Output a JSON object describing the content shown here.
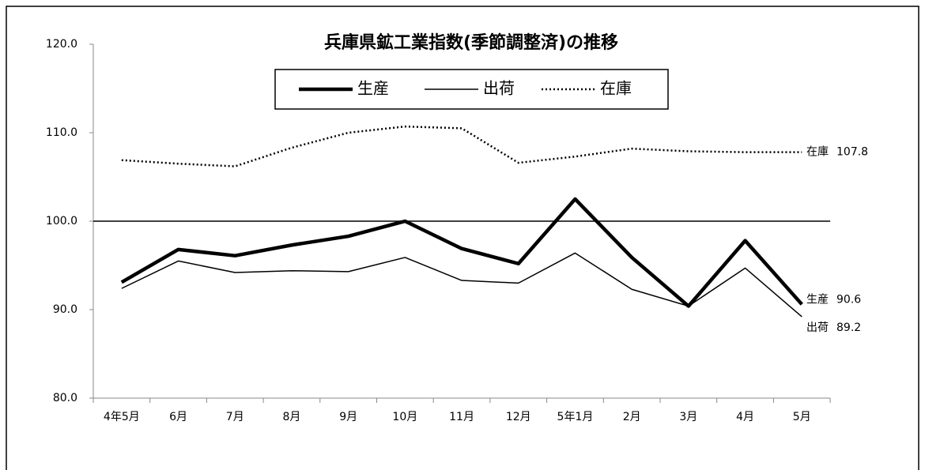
{
  "chart_data": {
    "type": "line",
    "title": "兵庫県鉱工業指数(季節調整済)の推移",
    "categories": [
      "4年5月",
      "6月",
      "7月",
      "8月",
      "9月",
      "10月",
      "11月",
      "12月",
      "5年1月",
      "2月",
      "3月",
      "4月",
      "5月"
    ],
    "series": [
      {
        "name": "生産",
        "color": "#000000",
        "style": "thick",
        "values": [
          93.1,
          96.8,
          96.1,
          97.3,
          98.3,
          100.0,
          96.9,
          95.2,
          102.5,
          95.9,
          90.4,
          97.8,
          90.6
        ]
      },
      {
        "name": "出荷",
        "color": "#000000",
        "style": "thin",
        "values": [
          92.4,
          95.5,
          94.2,
          94.4,
          94.3,
          95.9,
          93.3,
          93.0,
          96.4,
          92.3,
          90.4,
          94.7,
          89.2
        ]
      },
      {
        "name": "在庫",
        "color": "#000000",
        "style": "dotted",
        "values": [
          106.9,
          106.5,
          106.2,
          108.3,
          110.0,
          110.7,
          110.5,
          106.6,
          107.3,
          108.2,
          107.9,
          107.8,
          107.8
        ]
      }
    ],
    "ylim": [
      80,
      120
    ],
    "yticks": [
      {
        "value": 80,
        "label": "80.0"
      },
      {
        "value": 90,
        "label": "90.0"
      },
      {
        "value": 100,
        "label": "100.0"
      },
      {
        "value": 110,
        "label": "110.0"
      },
      {
        "value": 120,
        "label": "120.0"
      }
    ],
    "reference_line": 100,
    "legend": "top"
  }
}
